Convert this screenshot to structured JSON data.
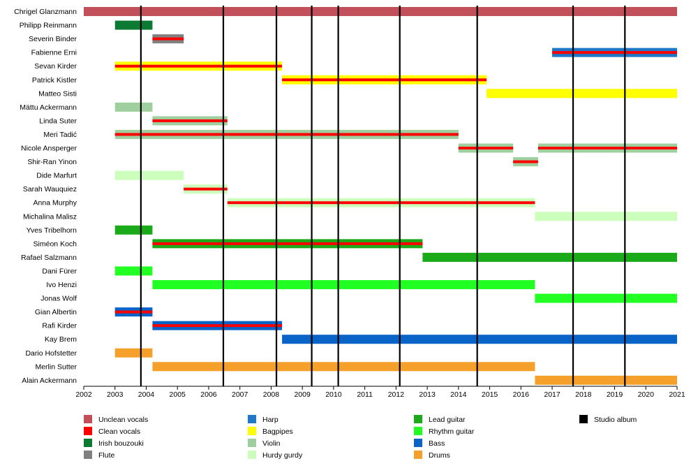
{
  "chart_data": {
    "type": "timeline",
    "title": "",
    "xlim": [
      2002,
      2021
    ],
    "x_ticks": [
      "2002",
      "2003",
      "2004",
      "2005",
      "2006",
      "2007",
      "2008",
      "2009",
      "2010",
      "2011",
      "2012",
      "2013",
      "2014",
      "2015",
      "2016",
      "2017",
      "2018",
      "2019",
      "2020",
      "2021"
    ],
    "grid": false,
    "legend_position": "bottom",
    "colors": {
      "Unclean vocals": "#c1505a",
      "Clean vocals": "#ff0000",
      "Irish bouzouki": "#0d7a33",
      "Flute": "#808080",
      "Harp": "#1f78c8",
      "Bagpipes": "#ffff00",
      "Violin": "#9fcf9f",
      "Hurdy gurdy": "#ccffbb",
      "Lead guitar": "#1aaa1a",
      "Rhythm guitar": "#22ff22",
      "Bass": "#0a64c8",
      "Drums": "#f5a02a",
      "Studio album": "#000000"
    },
    "studio_albums": [
      2003.83,
      2006.47,
      2008.17,
      2009.3,
      2010.15,
      2012.12,
      2014.6,
      2017.67,
      2019.33
    ],
    "members": [
      {
        "name": "Chrigel Glanzmann",
        "bars": [
          {
            "start": 2002,
            "end": 2021,
            "role": "Unclean vocals",
            "vocals": false
          }
        ]
      },
      {
        "name": "Philipp Reinmann",
        "bars": [
          {
            "start": 2003,
            "end": 2004.2,
            "role": "Irish bouzouki",
            "vocals": false
          }
        ]
      },
      {
        "name": "Severin Binder",
        "bars": [
          {
            "start": 2004.2,
            "end": 2005.2,
            "role": "Flute",
            "vocals": true
          }
        ]
      },
      {
        "name": "Fabienne Erni",
        "bars": [
          {
            "start": 2017,
            "end": 2021,
            "role": "Harp",
            "vocals": true
          }
        ]
      },
      {
        "name": "Sevan Kirder",
        "bars": [
          {
            "start": 2003,
            "end": 2008.35,
            "role": "Bagpipes",
            "vocals": true
          }
        ]
      },
      {
        "name": "Patrick Kistler",
        "bars": [
          {
            "start": 2008.35,
            "end": 2014.9,
            "role": "Bagpipes",
            "vocals": true
          }
        ]
      },
      {
        "name": "Matteo Sisti",
        "bars": [
          {
            "start": 2014.9,
            "end": 2021,
            "role": "Bagpipes",
            "vocals": false
          }
        ]
      },
      {
        "name": "Mättu Ackermann",
        "bars": [
          {
            "start": 2003,
            "end": 2004.2,
            "role": "Violin",
            "vocals": false
          }
        ]
      },
      {
        "name": "Linda Suter",
        "bars": [
          {
            "start": 2004.2,
            "end": 2006.6,
            "role": "Violin",
            "vocals": true
          }
        ]
      },
      {
        "name": "Meri Tadić",
        "bars": [
          {
            "start": 2003,
            "end": 2014,
            "role": "Violin",
            "vocals": true
          }
        ]
      },
      {
        "name": "Nicole Ansperger",
        "bars": [
          {
            "start": 2014,
            "end": 2015.75,
            "role": "Violin",
            "vocals": true
          },
          {
            "start": 2016.55,
            "end": 2021,
            "role": "Violin",
            "vocals": true
          }
        ]
      },
      {
        "name": "Shir-Ran Yinon",
        "bars": [
          {
            "start": 2015.75,
            "end": 2016.55,
            "role": "Violin",
            "vocals": true
          }
        ]
      },
      {
        "name": "Dide Marfurt",
        "bars": [
          {
            "start": 2003,
            "end": 2005.2,
            "role": "Hurdy gurdy",
            "vocals": false
          }
        ]
      },
      {
        "name": "Sarah Wauquiez",
        "bars": [
          {
            "start": 2005.2,
            "end": 2006.6,
            "role": "Hurdy gurdy",
            "vocals": true
          }
        ]
      },
      {
        "name": "Anna Murphy",
        "bars": [
          {
            "start": 2006.6,
            "end": 2016.45,
            "role": "Hurdy gurdy",
            "vocals": true
          }
        ]
      },
      {
        "name": "Michalina Malisz",
        "bars": [
          {
            "start": 2016.45,
            "end": 2021,
            "role": "Hurdy gurdy",
            "vocals": false
          }
        ]
      },
      {
        "name": "Yves Tribelhorn",
        "bars": [
          {
            "start": 2003,
            "end": 2004.2,
            "role": "Lead guitar",
            "vocals": false
          }
        ]
      },
      {
        "name": "Siméon Koch",
        "bars": [
          {
            "start": 2004.2,
            "end": 2012.85,
            "role": "Lead guitar",
            "vocals": true
          }
        ]
      },
      {
        "name": "Rafael Salzmann",
        "bars": [
          {
            "start": 2012.85,
            "end": 2021,
            "role": "Lead guitar",
            "vocals": false
          }
        ]
      },
      {
        "name": "Dani Fürer",
        "bars": [
          {
            "start": 2003,
            "end": 2004.2,
            "role": "Rhythm guitar",
            "vocals": false
          }
        ]
      },
      {
        "name": "Ivo Henzi",
        "bars": [
          {
            "start": 2004.2,
            "end": 2016.45,
            "role": "Rhythm guitar",
            "vocals": false
          }
        ]
      },
      {
        "name": "Jonas Wolf",
        "bars": [
          {
            "start": 2016.45,
            "end": 2021,
            "role": "Rhythm guitar",
            "vocals": false
          }
        ]
      },
      {
        "name": "Gian Albertin",
        "bars": [
          {
            "start": 2003,
            "end": 2004.2,
            "role": "Bass",
            "vocals": true
          }
        ]
      },
      {
        "name": "Rafi Kirder",
        "bars": [
          {
            "start": 2004.2,
            "end": 2008.35,
            "role": "Bass",
            "vocals": true
          }
        ]
      },
      {
        "name": "Kay Brem",
        "bars": [
          {
            "start": 2008.35,
            "end": 2021,
            "role": "Bass",
            "vocals": false
          }
        ]
      },
      {
        "name": "Dario Hofstetter",
        "bars": [
          {
            "start": 2003,
            "end": 2004.2,
            "role": "Drums",
            "vocals": false
          }
        ]
      },
      {
        "name": "Merlin Sutter",
        "bars": [
          {
            "start": 2004.2,
            "end": 2016.45,
            "role": "Drums",
            "vocals": false
          }
        ]
      },
      {
        "name": "Alain Ackermann",
        "bars": [
          {
            "start": 2016.45,
            "end": 2021,
            "role": "Drums",
            "vocals": false
          }
        ]
      }
    ],
    "legend": [
      [
        "Unclean vocals",
        "Clean vocals",
        "Irish bouzouki",
        "Flute"
      ],
      [
        "Harp",
        "Bagpipes",
        "Violin",
        "Hurdy gurdy"
      ],
      [
        "Lead guitar",
        "Rhythm guitar",
        "Bass",
        "Drums"
      ],
      [
        "Studio album"
      ]
    ]
  }
}
